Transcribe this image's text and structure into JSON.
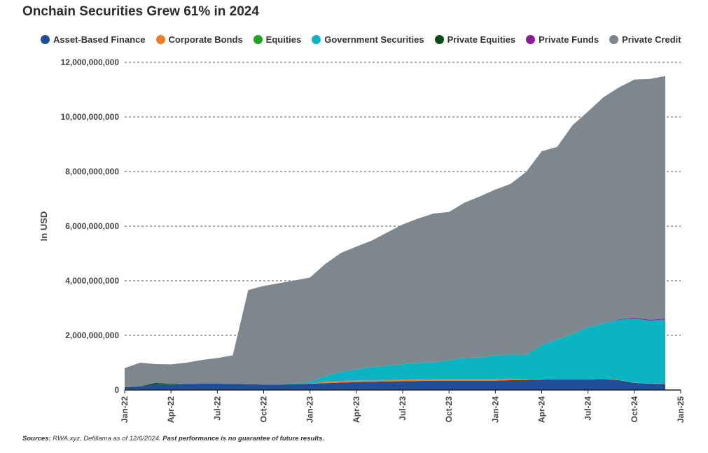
{
  "title": "Onchain Securities Grew 61% in 2024",
  "footer": {
    "sources_label": "Sources:",
    "sources_text": " RWA.xyz, Defillama as of 12/6/2024.",
    "disclaimer": " Past performance is no guarantee of future results."
  },
  "chart_data": {
    "type": "area",
    "stacked": true,
    "title": "Onchain Securities Grew 61% in 2024",
    "xlabel": "",
    "ylabel": "In USD",
    "ylim": [
      0,
      12000000000
    ],
    "xlim": [
      "2022-01",
      "2025-01"
    ],
    "grid": "horizontal dashed",
    "legend_position": "top",
    "x_ticks": [
      "Jan-22",
      "Apr-22",
      "Jul-22",
      "Oct-22",
      "Jan-23",
      "Apr-23",
      "Jul-23",
      "Oct-23",
      "Jan-24",
      "Apr-24",
      "Jul-24",
      "Oct-24",
      "Jan-25"
    ],
    "y_ticks": [
      "0",
      "2,000,000,000",
      "4,000,000,000",
      "6,000,000,000",
      "8,000,000,000",
      "10,000,000,000",
      "12,000,000,000"
    ],
    "x": [
      "2022-01-01",
      "2022-02-01",
      "2022-03-01",
      "2022-04-01",
      "2022-05-01",
      "2022-06-01",
      "2022-07-01",
      "2022-08-01",
      "2022-09-01",
      "2022-10-01",
      "2022-11-01",
      "2022-12-01",
      "2023-01-01",
      "2023-02-01",
      "2023-03-01",
      "2023-04-01",
      "2023-05-01",
      "2023-06-01",
      "2023-07-01",
      "2023-08-01",
      "2023-09-01",
      "2023-10-01",
      "2023-11-01",
      "2023-12-01",
      "2024-01-01",
      "2024-02-01",
      "2024-03-01",
      "2024-04-01",
      "2024-05-01",
      "2024-06-01",
      "2024-07-01",
      "2024-08-01",
      "2024-09-01",
      "2024-10-01",
      "2024-11-01",
      "2024-12-01"
    ],
    "series": [
      {
        "name": "Asset-Based Finance",
        "color": "#1f4e99",
        "values": [
          100000000,
          130000000,
          200000000,
          200000000,
          220000000,
          230000000,
          230000000,
          220000000,
          210000000,
          200000000,
          200000000,
          210000000,
          230000000,
          250000000,
          270000000,
          290000000,
          300000000,
          310000000,
          320000000,
          330000000,
          340000000,
          340000000,
          340000000,
          340000000,
          340000000,
          360000000,
          370000000,
          380000000,
          390000000,
          390000000,
          390000000,
          400000000,
          360000000,
          260000000,
          230000000,
          220000000
        ]
      },
      {
        "name": "Corporate Bonds",
        "color": "#f47c20",
        "values": [
          0,
          0,
          0,
          0,
          0,
          0,
          0,
          0,
          0,
          0,
          0,
          0,
          10000000,
          60000000,
          60000000,
          60000000,
          60000000,
          60000000,
          60000000,
          60000000,
          60000000,
          60000000,
          60000000,
          60000000,
          60000000,
          60000000,
          20000000,
          10000000,
          10000000,
          10000000,
          10000000,
          10000000,
          10000000,
          10000000,
          10000000,
          10000000
        ]
      },
      {
        "name": "Equities",
        "color": "#22a322",
        "values": [
          0,
          0,
          0,
          0,
          0,
          0,
          0,
          0,
          0,
          0,
          0,
          0,
          0,
          0,
          0,
          0,
          0,
          0,
          0,
          0,
          0,
          0,
          0,
          0,
          0,
          0,
          0,
          0,
          0,
          0,
          0,
          0,
          0,
          0,
          0,
          0
        ]
      },
      {
        "name": "Government Securities",
        "color": "#0bb4c1",
        "values": [
          0,
          0,
          0,
          0,
          0,
          0,
          0,
          0,
          0,
          0,
          0,
          20000000,
          60000000,
          200000000,
          340000000,
          410000000,
          480000000,
          520000000,
          560000000,
          600000000,
          620000000,
          680000000,
          780000000,
          790000000,
          870000000,
          880000000,
          900000000,
          1250000000,
          1450000000,
          1650000000,
          1900000000,
          2030000000,
          2200000000,
          2350000000,
          2300000000,
          2350000000
        ]
      },
      {
        "name": "Private Equities",
        "color": "#0b4d14",
        "values": [
          0,
          0,
          60000000,
          20000000,
          0,
          0,
          0,
          0,
          0,
          0,
          0,
          0,
          0,
          0,
          0,
          0,
          0,
          0,
          0,
          0,
          0,
          0,
          0,
          0,
          0,
          0,
          0,
          0,
          0,
          0,
          0,
          0,
          0,
          0,
          0,
          0
        ]
      },
      {
        "name": "Private Funds",
        "color": "#8e1b96",
        "values": [
          0,
          0,
          0,
          0,
          0,
          0,
          0,
          0,
          0,
          0,
          0,
          0,
          0,
          0,
          0,
          0,
          0,
          0,
          0,
          0,
          0,
          0,
          0,
          0,
          0,
          0,
          0,
          0,
          0,
          0,
          0,
          0,
          20000000,
          30000000,
          30000000,
          30000000
        ]
      },
      {
        "name": "Private Credit",
        "color": "#7e878e",
        "values": [
          700000000,
          870000000,
          690000000,
          720000000,
          780000000,
          870000000,
          940000000,
          1050000000,
          3450000000,
          3610000000,
          3710000000,
          3780000000,
          3820000000,
          4110000000,
          4350000000,
          4490000000,
          4630000000,
          4880000000,
          5120000000,
          5290000000,
          5440000000,
          5440000000,
          5680000000,
          5900000000,
          6070000000,
          6250000000,
          6700000000,
          7100000000,
          7050000000,
          7650000000,
          7900000000,
          8280000000,
          8490000000,
          8720000000,
          8820000000,
          8890000000
        ]
      }
    ]
  }
}
